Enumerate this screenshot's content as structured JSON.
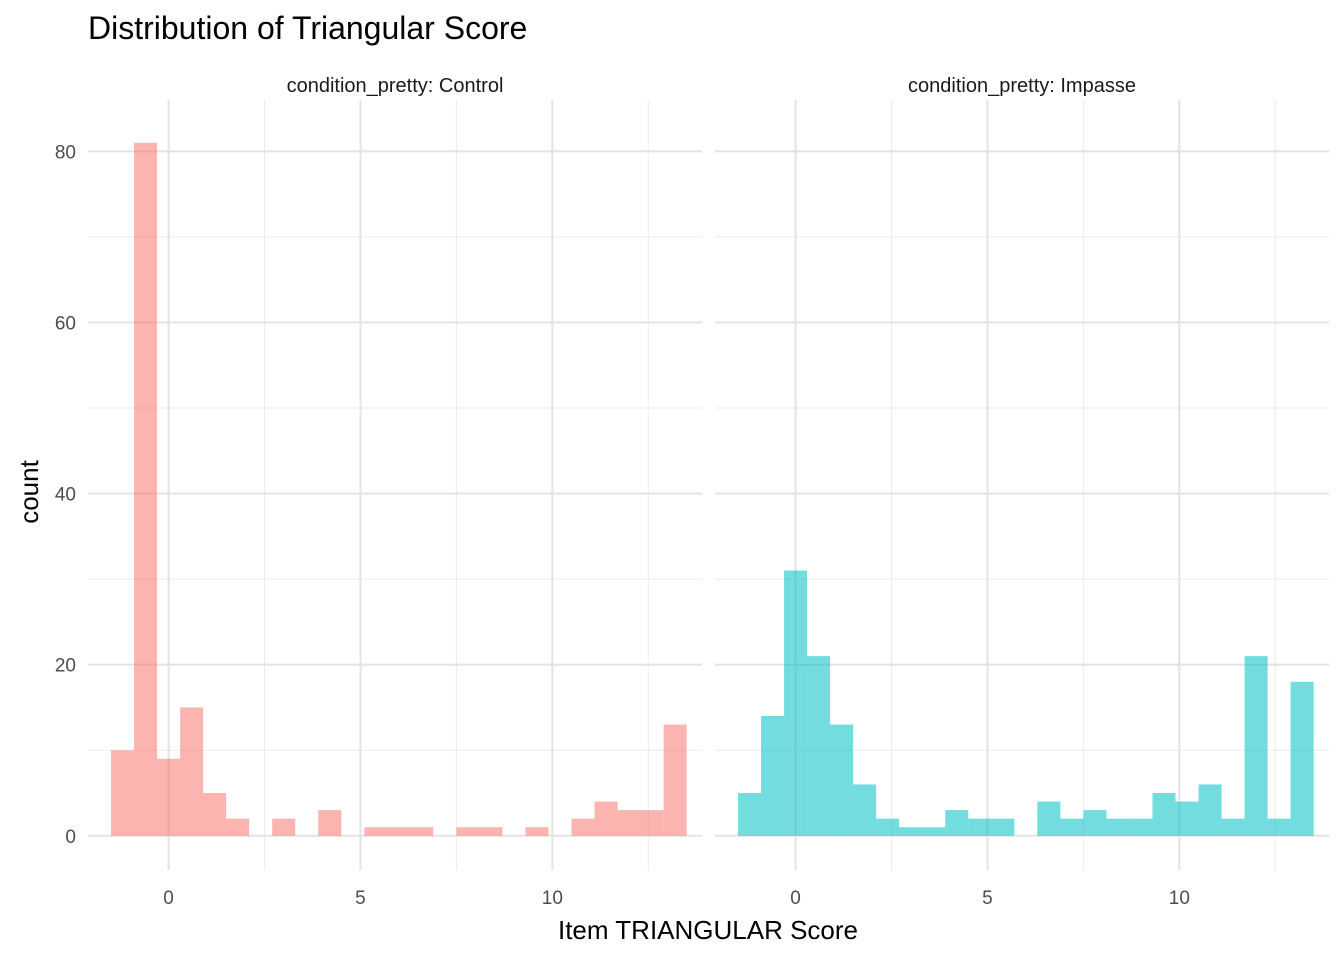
{
  "title": "Distribution of Triangular Score",
  "xlabel": "Item TRIANGULAR Score",
  "ylabel": "count",
  "chart_data": {
    "type": "bar",
    "title": "Distribution of Triangular Score",
    "xlabel": "Item TRIANGULAR Score",
    "ylabel": "count",
    "x_ticks": [
      0,
      5,
      10
    ],
    "y_ticks": [
      0,
      20,
      40,
      60,
      80
    ],
    "xlim": [
      -2.1,
      13.9
    ],
    "ylim": [
      -4,
      86
    ],
    "grid": true,
    "bin_width": 0.6,
    "bin_start": -1.5,
    "panels": [
      {
        "strip_label": "condition_pretty: Control",
        "color": "#F8766D",
        "values": [
          10,
          81,
          9,
          15,
          5,
          2,
          0,
          2,
          0,
          3,
          0,
          1,
          1,
          1,
          0,
          1,
          1,
          0,
          1,
          0,
          2,
          4,
          3,
          3,
          13
        ]
      },
      {
        "strip_label": "condition_pretty: Impasse",
        "color": "#00BFC4",
        "values": [
          5,
          14,
          31,
          21,
          13,
          6,
          2,
          1,
          1,
          3,
          2,
          2,
          0,
          4,
          2,
          3,
          2,
          2,
          5,
          4,
          6,
          2,
          21,
          2,
          18
        ]
      }
    ]
  }
}
